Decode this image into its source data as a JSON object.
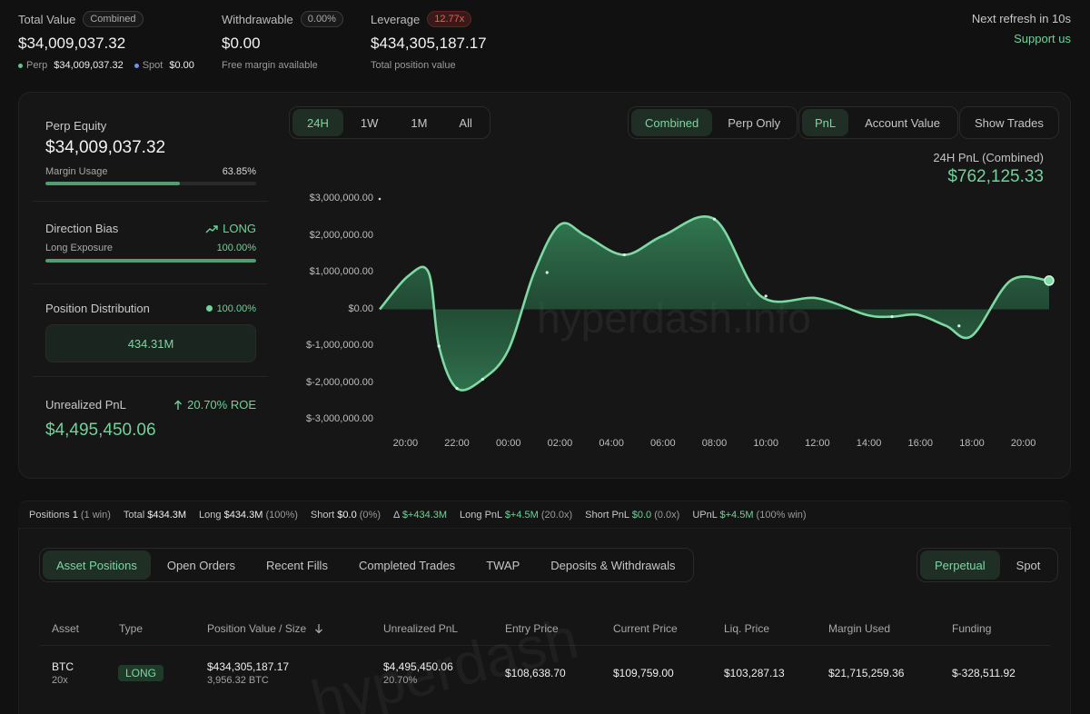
{
  "top": {
    "total_value": {
      "label": "Total Value",
      "badge": "Combined",
      "value": "$34,009,037.32",
      "perp_label": "Perp",
      "perp_value": "$34,009,037.32",
      "spot_label": "Spot",
      "spot_value": "$0.00"
    },
    "withdrawable": {
      "label": "Withdrawable",
      "badge": "0.00%",
      "value": "$0.00",
      "sub": "Free margin available"
    },
    "leverage": {
      "label": "Leverage",
      "badge": "12.77x",
      "value": "$434,305,187.17",
      "sub": "Total position value"
    },
    "refresh": "Next refresh in 10s",
    "support": "Support us"
  },
  "side": {
    "perp_equity": {
      "label": "Perp Equity",
      "value": "$34,009,037.32",
      "margin_label": "Margin Usage",
      "margin_pct": "63.85%",
      "margin_fraction": 0.6385
    },
    "direction": {
      "label": "Direction Bias",
      "value": "LONG",
      "exposure_label": "Long Exposure",
      "exposure_pct": "100.00%",
      "exposure_fraction": 1.0
    },
    "distribution": {
      "label": "Position Distribution",
      "pct": "100.00%",
      "box_value": "434.31M"
    },
    "upnl": {
      "label": "Unrealized PnL",
      "roe": "20.70% ROE",
      "value": "$4,495,450.06"
    }
  },
  "controls": {
    "ranges": [
      "24H",
      "1W",
      "1M",
      "All"
    ],
    "active_range": "24H",
    "modes": [
      "Combined",
      "Perp Only"
    ],
    "metrics": [
      "PnL",
      "Account Value"
    ],
    "show_trades": "Show Trades"
  },
  "chart_header": {
    "title": "24H PnL (Combined)",
    "value": "$762,125.33"
  },
  "chart_data": {
    "type": "area",
    "y_ticks": [
      "$3,000,000.00",
      "$2,000,000.00",
      "$1,000,000.00",
      "$0.00",
      "$-1,000,000.00",
      "$-2,000,000.00",
      "$-3,000,000.00"
    ],
    "x_ticks": [
      "20:00",
      "22:00",
      "00:00",
      "02:00",
      "04:00",
      "06:00",
      "08:00",
      "10:00",
      "12:00",
      "14:00",
      "16:00",
      "18:00",
      "20:00"
    ],
    "ylim": [
      -3000000,
      3000000
    ],
    "x_hours": [
      0,
      1.1,
      1.9,
      2.3,
      3.0,
      4.0,
      5.0,
      6.0,
      7.0,
      8.0,
      9.5,
      11.0,
      13.0,
      14.8,
      17.0,
      18.9,
      19.9,
      20.9,
      22.0,
      23.0,
      24.5,
      26.0
    ],
    "values": [
      0,
      900000,
      1000000,
      -1000000,
      -2150000,
      -1900000,
      -1100000,
      1000000,
      2300000,
      2000000,
      1480000,
      2000000,
      2450000,
      360000,
      300000,
      -150000,
      -200000,
      -150000,
      -450000,
      -720000,
      780000,
      780000
    ],
    "markers": [
      2.3,
      3.0,
      4.0,
      6.5,
      9.5,
      13.0,
      15.0,
      19.9,
      22.5,
      26.0
    ],
    "watermark": "hyperdash.info",
    "colors": {
      "line": "#7ed9a2",
      "fill": "#2f7a52"
    }
  },
  "summary": {
    "positions_label": "Positions",
    "positions_count": "1",
    "positions_win": "(1 win)",
    "total_label": "Total",
    "total": "$434.3M",
    "long_label": "Long",
    "long": "$434.3M",
    "long_pct": "(100%)",
    "short_label": "Short",
    "short": "$0.0",
    "short_pct": "(0%)",
    "delta_label": "Δ",
    "delta": "$+434.3M",
    "longpnl_label": "Long PnL",
    "longpnl": "$+4.5M",
    "longpnl_x": "(20.0x)",
    "shortpnl_label": "Short PnL",
    "shortpnl": "$0.0",
    "shortpnl_x": "(0.0x)",
    "upnl_label": "UPnL",
    "upnl": "$+4.5M",
    "upnl_win": "(100% win)"
  },
  "tabs": [
    "Asset Positions",
    "Open Orders",
    "Recent Fills",
    "Completed Trades",
    "TWAP",
    "Deposits & Withdrawals"
  ],
  "market_tabs": [
    "Perpetual",
    "Spot"
  ],
  "table": {
    "headers": [
      "Asset",
      "Type",
      "Position Value / Size",
      "Unrealized PnL",
      "Entry Price",
      "Current Price",
      "Liq. Price",
      "Margin Used",
      "Funding"
    ],
    "row": {
      "asset": "BTC",
      "leverage": "20x",
      "type": "LONG",
      "value": "$434,305,187.17",
      "size": "3,956.32 BTC",
      "upnl": "$4,495,450.06",
      "upnl_pct": "20.70%",
      "entry": "$108,638.70",
      "current": "$109,759.00",
      "liq": "$103,287.13",
      "margin": "$21,715,259.36",
      "funding": "$-328,511.92"
    },
    "watermark": "hyperdash"
  }
}
